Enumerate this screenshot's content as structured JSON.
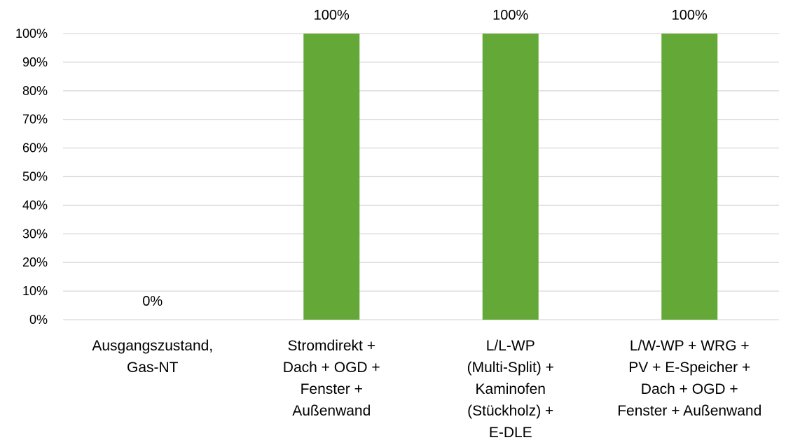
{
  "chart_data": {
    "type": "bar",
    "title": "",
    "xlabel": "",
    "ylabel": "",
    "categories": [
      [
        "Ausgangszustand,",
        "Gas-NT"
      ],
      [
        "Stromdirekt +",
        "Dach + OGD +",
        "Fenster +",
        "Außenwand"
      ],
      [
        "L/L-WP",
        "(Multi-Split) +",
        "Kaminofen",
        "(Stückholz) +",
        "E-DLE"
      ],
      [
        "L/W-WP + WRG +",
        "PV + E-Speicher +",
        "Dach + OGD +",
        "Fenster + Außenwand"
      ]
    ],
    "values": [
      0,
      100,
      100,
      100
    ],
    "data_labels": [
      "0%",
      "100%",
      "100%",
      "100%"
    ],
    "ylim": [
      0,
      100
    ],
    "yticks": [
      0,
      10,
      20,
      30,
      40,
      50,
      60,
      70,
      80,
      90,
      100
    ],
    "ytick_labels": [
      "0%",
      "10%",
      "20%",
      "30%",
      "40%",
      "50%",
      "60%",
      "70%",
      "80%",
      "90%",
      "100%"
    ],
    "grid": true,
    "legend": "none",
    "colors": {
      "bar": "#64a838",
      "grid": "#d9d9d9",
      "text": "#000000"
    }
  }
}
